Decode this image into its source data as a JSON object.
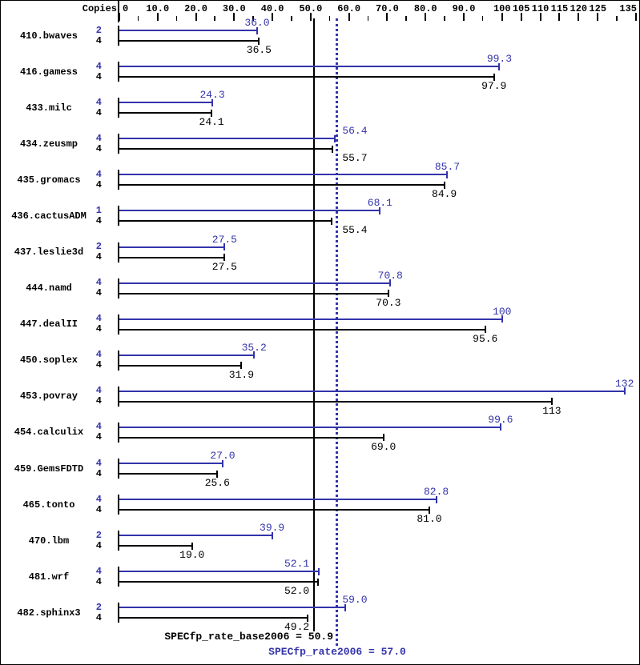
{
  "chart": {
    "copies_header": "Copies",
    "colors": {
      "peak_blue": "#3333aa",
      "base_black": "#000000",
      "background": "#ffffff",
      "border": "#000000"
    },
    "axis": {
      "ticks": [
        {
          "value": 0,
          "label": "0",
          "major": true
        },
        {
          "value": 5,
          "major": false
        },
        {
          "value": 10,
          "label": "10.0",
          "major": true
        },
        {
          "value": 15,
          "major": false
        },
        {
          "value": 20,
          "label": "20.0",
          "major": true
        },
        {
          "value": 25,
          "major": false
        },
        {
          "value": 30,
          "label": "30.0",
          "major": true
        },
        {
          "value": 35,
          "major": false
        },
        {
          "value": 40,
          "label": "40.0",
          "major": true
        },
        {
          "value": 45,
          "major": false
        },
        {
          "value": 50,
          "label": "50.0",
          "major": true
        },
        {
          "value": 55,
          "major": false
        },
        {
          "value": 60,
          "label": "60.0",
          "major": true
        },
        {
          "value": 65,
          "major": false
        },
        {
          "value": 70,
          "label": "70.0",
          "major": true
        },
        {
          "value": 75,
          "major": false
        },
        {
          "value": 80,
          "label": "80.0",
          "major": true
        },
        {
          "value": 85,
          "major": false
        },
        {
          "value": 90,
          "label": "90.0",
          "major": true
        },
        {
          "value": 95,
          "major": false
        },
        {
          "value": 100,
          "label": "100",
          "major": true
        },
        {
          "value": 105,
          "label": "105",
          "major": true
        },
        {
          "value": 110,
          "label": "110",
          "major": true
        },
        {
          "value": 115,
          "label": "115",
          "major": true
        },
        {
          "value": 120,
          "label": "120",
          "major": true
        },
        {
          "value": 125,
          "label": "125",
          "major": true
        },
        {
          "value": 130,
          "major": false
        },
        {
          "value": 135,
          "label": "135",
          "major": true
        }
      ]
    },
    "benchmarks": [
      {
        "name": "410.bwaves",
        "peak": {
          "copies": "2",
          "value": 36.0,
          "label": "36.0"
        },
        "base": {
          "copies": "4",
          "value": 36.5,
          "label": "36.5"
        }
      },
      {
        "name": "416.gamess",
        "peak": {
          "copies": "4",
          "value": 99.3,
          "label": "99.3"
        },
        "base": {
          "copies": "4",
          "value": 97.9,
          "label": "97.9"
        }
      },
      {
        "name": "433.milc",
        "peak": {
          "copies": "4",
          "value": 24.3,
          "label": "24.3"
        },
        "base": {
          "copies": "4",
          "value": 24.1,
          "label": "24.1"
        }
      },
      {
        "name": "434.zeusmp",
        "peak": {
          "copies": "4",
          "value": 56.4,
          "label": "56.4"
        },
        "base": {
          "copies": "4",
          "value": 55.7,
          "label": "55.7"
        }
      },
      {
        "name": "435.gromacs",
        "peak": {
          "copies": "4",
          "value": 85.7,
          "label": "85.7"
        },
        "base": {
          "copies": "4",
          "value": 84.9,
          "label": "84.9"
        }
      },
      {
        "name": "436.cactusADM",
        "peak": {
          "copies": "1",
          "value": 68.1,
          "label": "68.1"
        },
        "base": {
          "copies": "4",
          "value": 55.4,
          "label": "55.4"
        }
      },
      {
        "name": "437.leslie3d",
        "peak": {
          "copies": "2",
          "value": 27.5,
          "label": "27.5"
        },
        "base": {
          "copies": "4",
          "value": 27.5,
          "label": "27.5"
        }
      },
      {
        "name": "444.namd",
        "peak": {
          "copies": "4",
          "value": 70.8,
          "label": "70.8"
        },
        "base": {
          "copies": "4",
          "value": 70.3,
          "label": "70.3"
        }
      },
      {
        "name": "447.dealII",
        "peak": {
          "copies": "4",
          "value": 100,
          "label": "100"
        },
        "base": {
          "copies": "4",
          "value": 95.6,
          "label": "95.6"
        }
      },
      {
        "name": "450.soplex",
        "peak": {
          "copies": "4",
          "value": 35.2,
          "label": "35.2"
        },
        "base": {
          "copies": "4",
          "value": 31.9,
          "label": "31.9"
        }
      },
      {
        "name": "453.povray",
        "peak": {
          "copies": "4",
          "value": 132,
          "label": "132"
        },
        "base": {
          "copies": "4",
          "value": 113,
          "label": "113"
        }
      },
      {
        "name": "454.calculix",
        "peak": {
          "copies": "4",
          "value": 99.6,
          "label": "99.6"
        },
        "base": {
          "copies": "4",
          "value": 69.0,
          "label": "69.0"
        }
      },
      {
        "name": "459.GemsFDTD",
        "peak": {
          "copies": "4",
          "value": 27.0,
          "label": "27.0"
        },
        "base": {
          "copies": "4",
          "value": 25.6,
          "label": "25.6"
        }
      },
      {
        "name": "465.tonto",
        "peak": {
          "copies": "4",
          "value": 82.8,
          "label": "82.8"
        },
        "base": {
          "copies": "4",
          "value": 81.0,
          "label": "81.0"
        }
      },
      {
        "name": "470.lbm",
        "peak": {
          "copies": "2",
          "value": 39.9,
          "label": "39.9"
        },
        "base": {
          "copies": "4",
          "value": 19.0,
          "label": "19.0"
        }
      },
      {
        "name": "481.wrf",
        "peak": {
          "copies": "4",
          "value": 52.1,
          "label": "52.1"
        },
        "base": {
          "copies": "4",
          "value": 52.0,
          "label": "52.0"
        }
      },
      {
        "name": "482.sphinx3",
        "peak": {
          "copies": "2",
          "value": 59.0,
          "label": "59.0"
        },
        "base": {
          "copies": "4",
          "value": 49.2,
          "label": "49.2"
        }
      }
    ],
    "summary": {
      "base_text": "SPECfp_rate_base2006 = 50.9",
      "base_value": 50.9,
      "peak_text": "SPECfp_rate2006 = 57.0",
      "peak_value": 57.0
    }
  },
  "chart_data": {
    "type": "bar",
    "orientation": "horizontal",
    "title": "SPECfp_rate2006 result graph",
    "ylabel": "Copies",
    "xlim": [
      0,
      136
    ],
    "grid": false,
    "legend_position": "none",
    "categories": [
      "410.bwaves",
      "416.gamess",
      "433.milc",
      "434.zeusmp",
      "435.gromacs",
      "436.cactusADM",
      "437.leslie3d",
      "444.namd",
      "447.dealII",
      "450.soplex",
      "453.povray",
      "454.calculix",
      "459.GemsFDTD",
      "465.tonto",
      "470.lbm",
      "481.wrf",
      "482.sphinx3"
    ],
    "series": [
      {
        "name": "peak (SPECfp_rate2006)",
        "color": "#3333aa",
        "copies": [
          2,
          4,
          4,
          4,
          4,
          1,
          2,
          4,
          4,
          4,
          4,
          4,
          4,
          4,
          2,
          4,
          2
        ],
        "values": [
          36.0,
          99.3,
          24.3,
          56.4,
          85.7,
          68.1,
          27.5,
          70.8,
          100,
          35.2,
          132,
          99.6,
          27.0,
          82.8,
          39.9,
          52.1,
          59.0
        ]
      },
      {
        "name": "base (SPECfp_rate_base2006)",
        "color": "#000000",
        "copies": [
          4,
          4,
          4,
          4,
          4,
          4,
          4,
          4,
          4,
          4,
          4,
          4,
          4,
          4,
          4,
          4,
          4
        ],
        "values": [
          36.5,
          97.9,
          24.1,
          55.7,
          84.9,
          55.4,
          27.5,
          70.3,
          95.6,
          31.9,
          113,
          69.0,
          25.6,
          81.0,
          19.0,
          52.0,
          49.2
        ]
      }
    ],
    "x_tick_labels": [
      "0",
      "10.0",
      "20.0",
      "30.0",
      "40.0",
      "50.0",
      "60.0",
      "70.0",
      "80.0",
      "90.0",
      "100",
      "105",
      "110",
      "115",
      "120",
      "125",
      "135"
    ],
    "reference_lines": [
      {
        "label": "SPECfp_rate_base2006 = 50.9",
        "value": 50.9,
        "style": "solid",
        "color": "#000000"
      },
      {
        "label": "SPECfp_rate2006 = 57.0",
        "value": 57.0,
        "style": "dotted",
        "color": "#3333aa"
      }
    ]
  }
}
